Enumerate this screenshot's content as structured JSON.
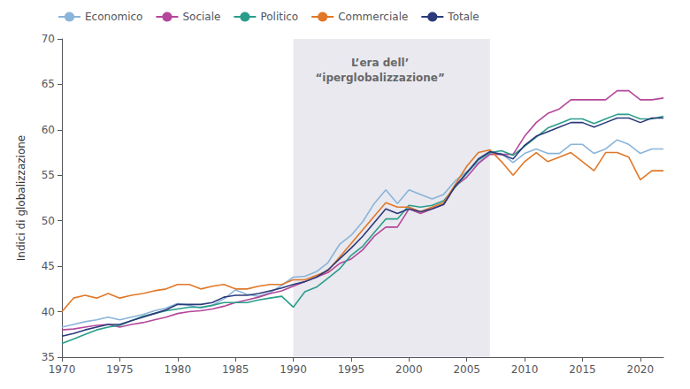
{
  "chart_data": {
    "type": "line",
    "ylabel": "Indici di globalizzazione",
    "xlim": [
      1970,
      2022
    ],
    "ylim": [
      35,
      70
    ],
    "yticks": [
      35,
      40,
      45,
      50,
      55,
      60,
      65,
      70
    ],
    "xticks": [
      1970,
      1975,
      1980,
      1985,
      1990,
      1995,
      2000,
      2005,
      2010,
      2015,
      2020
    ],
    "grid": false,
    "legend": "upper left",
    "shaded_region": {
      "x": [
        1990,
        2007
      ],
      "color": "#e9e9ef"
    },
    "annotations": [
      {
        "text": "L’era dell’\n“iperglobalizzazione”",
        "x": 1997.5,
        "y": 68.2
      }
    ],
    "x": [
      1970,
      1971,
      1972,
      1973,
      1974,
      1975,
      1976,
      1977,
      1978,
      1979,
      1980,
      1981,
      1982,
      1983,
      1984,
      1985,
      1986,
      1987,
      1988,
      1989,
      1990,
      1991,
      1992,
      1993,
      1994,
      1995,
      1996,
      1997,
      1998,
      1999,
      2000,
      2001,
      2002,
      2003,
      2004,
      2005,
      2006,
      2007,
      2008,
      2009,
      2010,
      2011,
      2012,
      2013,
      2014,
      2015,
      2016,
      2017,
      2018,
      2019,
      2020,
      2021,
      2022
    ],
    "series": [
      {
        "name": "Economico",
        "color": "#8ab4d8",
        "values": [
          38.3,
          38.6,
          38.9,
          39.1,
          39.4,
          39.1,
          39.4,
          39.7,
          40.1,
          40.4,
          40.9,
          40.7,
          40.4,
          40.7,
          41.4,
          42.4,
          41.9,
          41.7,
          42.1,
          42.9,
          43.8,
          43.9,
          44.4,
          45.4,
          47.4,
          48.4,
          49.9,
          51.9,
          53.4,
          51.9,
          53.4,
          52.9,
          52.4,
          52.9,
          54.4,
          55.4,
          56.4,
          57.4,
          57.4,
          56.4,
          57.4,
          57.9,
          57.4,
          57.4,
          58.4,
          58.4,
          57.4,
          57.9,
          58.9,
          58.4,
          57.4,
          57.9,
          57.9
        ]
      },
      {
        "name": "Sociale",
        "color": "#b5479a",
        "values": [
          38.0,
          38.1,
          38.3,
          38.5,
          38.6,
          38.3,
          38.6,
          38.8,
          39.1,
          39.4,
          39.8,
          40.0,
          40.1,
          40.3,
          40.6,
          41.0,
          41.3,
          41.6,
          42.0,
          42.3,
          42.8,
          43.3,
          43.8,
          44.3,
          45.3,
          45.8,
          46.8,
          48.3,
          49.3,
          49.3,
          51.3,
          50.8,
          51.3,
          51.8,
          53.8,
          54.8,
          56.3,
          57.3,
          57.3,
          57.3,
          59.3,
          60.8,
          61.8,
          62.3,
          63.3,
          63.3,
          63.3,
          63.3,
          64.3,
          64.3,
          63.3,
          63.3,
          63.5
        ]
      },
      {
        "name": "Politico",
        "color": "#2a9d8a",
        "values": [
          36.5,
          37.0,
          37.5,
          38.0,
          38.3,
          38.5,
          39.0,
          39.5,
          39.8,
          40.1,
          40.3,
          40.5,
          40.5,
          40.7,
          41.0,
          41.0,
          41.0,
          41.3,
          41.5,
          41.7,
          40.5,
          42.2,
          42.7,
          43.7,
          44.7,
          46.2,
          47.2,
          48.7,
          50.2,
          50.2,
          51.7,
          51.5,
          51.7,
          52.2,
          53.7,
          55.2,
          56.7,
          57.5,
          57.7,
          57.2,
          58.2,
          59.2,
          60.2,
          60.7,
          61.2,
          61.2,
          60.7,
          61.2,
          61.7,
          61.7,
          61.2,
          61.2,
          61.5
        ]
      },
      {
        "name": "Commerciale",
        "color": "#e07828",
        "values": [
          40.0,
          41.5,
          41.8,
          41.5,
          42.0,
          41.5,
          41.8,
          42.0,
          42.3,
          42.5,
          43.0,
          43.0,
          42.5,
          42.8,
          43.0,
          42.5,
          42.5,
          42.8,
          43.0,
          43.0,
          43.5,
          43.5,
          44.0,
          44.5,
          46.0,
          47.5,
          49.0,
          50.5,
          52.0,
          51.5,
          51.5,
          51.0,
          51.5,
          52.0,
          54.0,
          56.0,
          57.5,
          57.8,
          56.5,
          55.0,
          56.5,
          57.5,
          56.5,
          57.0,
          57.5,
          56.5,
          55.5,
          57.5,
          57.5,
          57.0,
          54.5,
          55.5,
          55.5
        ]
      },
      {
        "name": "Totale",
        "color": "#2b3a7a",
        "values": [
          37.3,
          37.6,
          38.0,
          38.3,
          38.6,
          38.6,
          39.0,
          39.4,
          39.8,
          40.2,
          40.8,
          40.8,
          40.8,
          41.0,
          41.6,
          41.8,
          41.8,
          42.0,
          42.3,
          42.6,
          43.0,
          43.3,
          43.8,
          44.6,
          45.8,
          47.0,
          48.3,
          49.8,
          51.3,
          50.8,
          51.3,
          51.0,
          51.3,
          51.8,
          53.8,
          55.3,
          56.8,
          57.6,
          57.3,
          56.8,
          58.3,
          59.3,
          59.8,
          60.3,
          60.8,
          60.8,
          60.3,
          60.8,
          61.3,
          61.3,
          60.8,
          61.3,
          61.3
        ]
      }
    ]
  }
}
